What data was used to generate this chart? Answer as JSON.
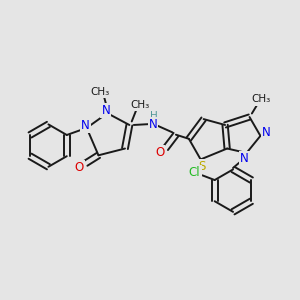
{
  "bg_color": "#e5e5e5",
  "bond_color": "#1a1a1a",
  "N_color": "#0000ee",
  "O_color": "#dd0000",
  "S_color": "#bbaa00",
  "Cl_color": "#22bb22",
  "H_color": "#559999",
  "font_size": 8.5,
  "lw": 1.4,
  "fig_w": 3.0,
  "fig_h": 3.0,
  "dpi": 100,
  "xlim": [
    0,
    10
  ],
  "ylim": [
    0,
    10
  ]
}
